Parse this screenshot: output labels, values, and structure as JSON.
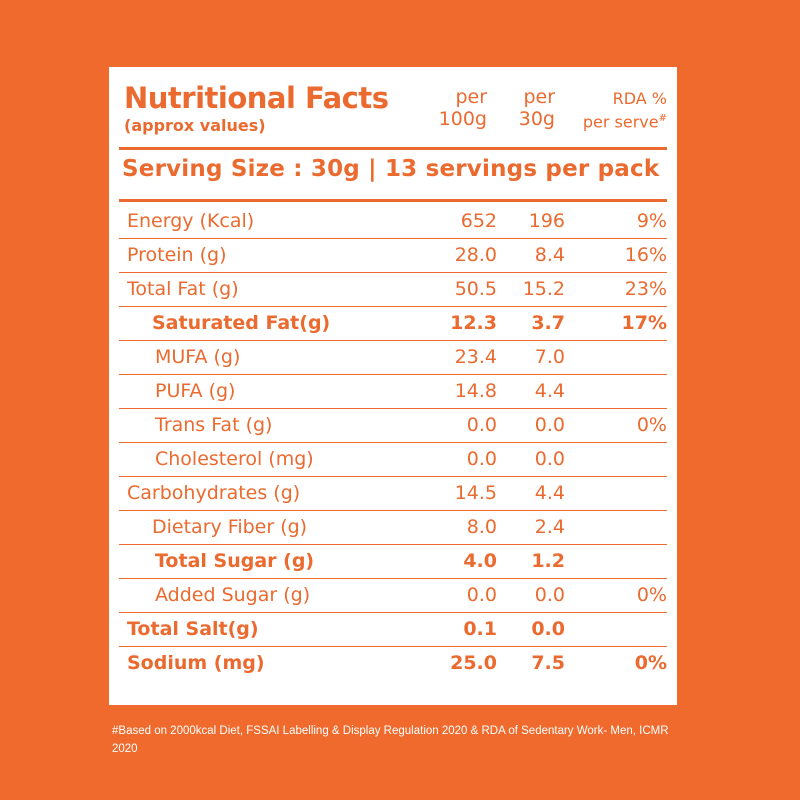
{
  "header": {
    "title": "Nutritional Facts",
    "subtitle": "(approx values)",
    "col1_line1": "per",
    "col1_line2": "100g",
    "col2_line1": "per",
    "col2_line2": "30g",
    "col3_line1": "RDA %",
    "col3_line2": "per serve",
    "col3_mark": "#"
  },
  "serving": "Serving Size : 30g  |  13 servings per pack",
  "rows": [
    {
      "label": "Energy (Kcal)",
      "per100": "652",
      "per30": "196",
      "rda": "9%"
    },
    {
      "label": "Protein (g)",
      "per100": "28.0",
      "per30": "8.4",
      "rda": "16%"
    },
    {
      "label": "Total Fat (g)",
      "per100": "50.5",
      "per30": "15.2",
      "rda": "23%"
    },
    {
      "label": "Saturated Fat(g)",
      "per100": "12.3",
      "per30": "3.7",
      "rda": "17%"
    },
    {
      "label": "MUFA (g)",
      "per100": "23.4",
      "per30": "7.0",
      "rda": ""
    },
    {
      "label": "PUFA (g)",
      "per100": "14.8",
      "per30": "4.4",
      "rda": ""
    },
    {
      "label": "Trans Fat (g)",
      "per100": "0.0",
      "per30": "0.0",
      "rda": "0%"
    },
    {
      "label": "Cholesterol (mg)",
      "per100": "0.0",
      "per30": "0.0",
      "rda": ""
    },
    {
      "label": "Carbohydrates (g)",
      "per100": "14.5",
      "per30": "4.4",
      "rda": ""
    },
    {
      "label": "Dietary Fiber (g)",
      "per100": "8.0",
      "per30": "2.4",
      "rda": ""
    },
    {
      "label": "Total Sugar (g)",
      "per100": "4.0",
      "per30": "1.2",
      "rda": ""
    },
    {
      "label": "Added Sugar (g)",
      "per100": "0.0",
      "per30": "0.0",
      "rda": "0%"
    },
    {
      "label": "Total Salt(g)",
      "per100": "0.1",
      "per30": "0.0",
      "rda": ""
    },
    {
      "label": "Sodium (mg)",
      "per100": "25.0",
      "per30": "7.5",
      "rda": "0%"
    }
  ],
  "footnote": "#Based on 2000kcal Diet, FSSAI Labelling & Display Regulation 2020 & RDA of Sedentary Work- Men, ICMR 2020",
  "colors": {
    "background": "#ef6a2c",
    "accent": "#ea6a2f",
    "panel": "#ffffff"
  }
}
